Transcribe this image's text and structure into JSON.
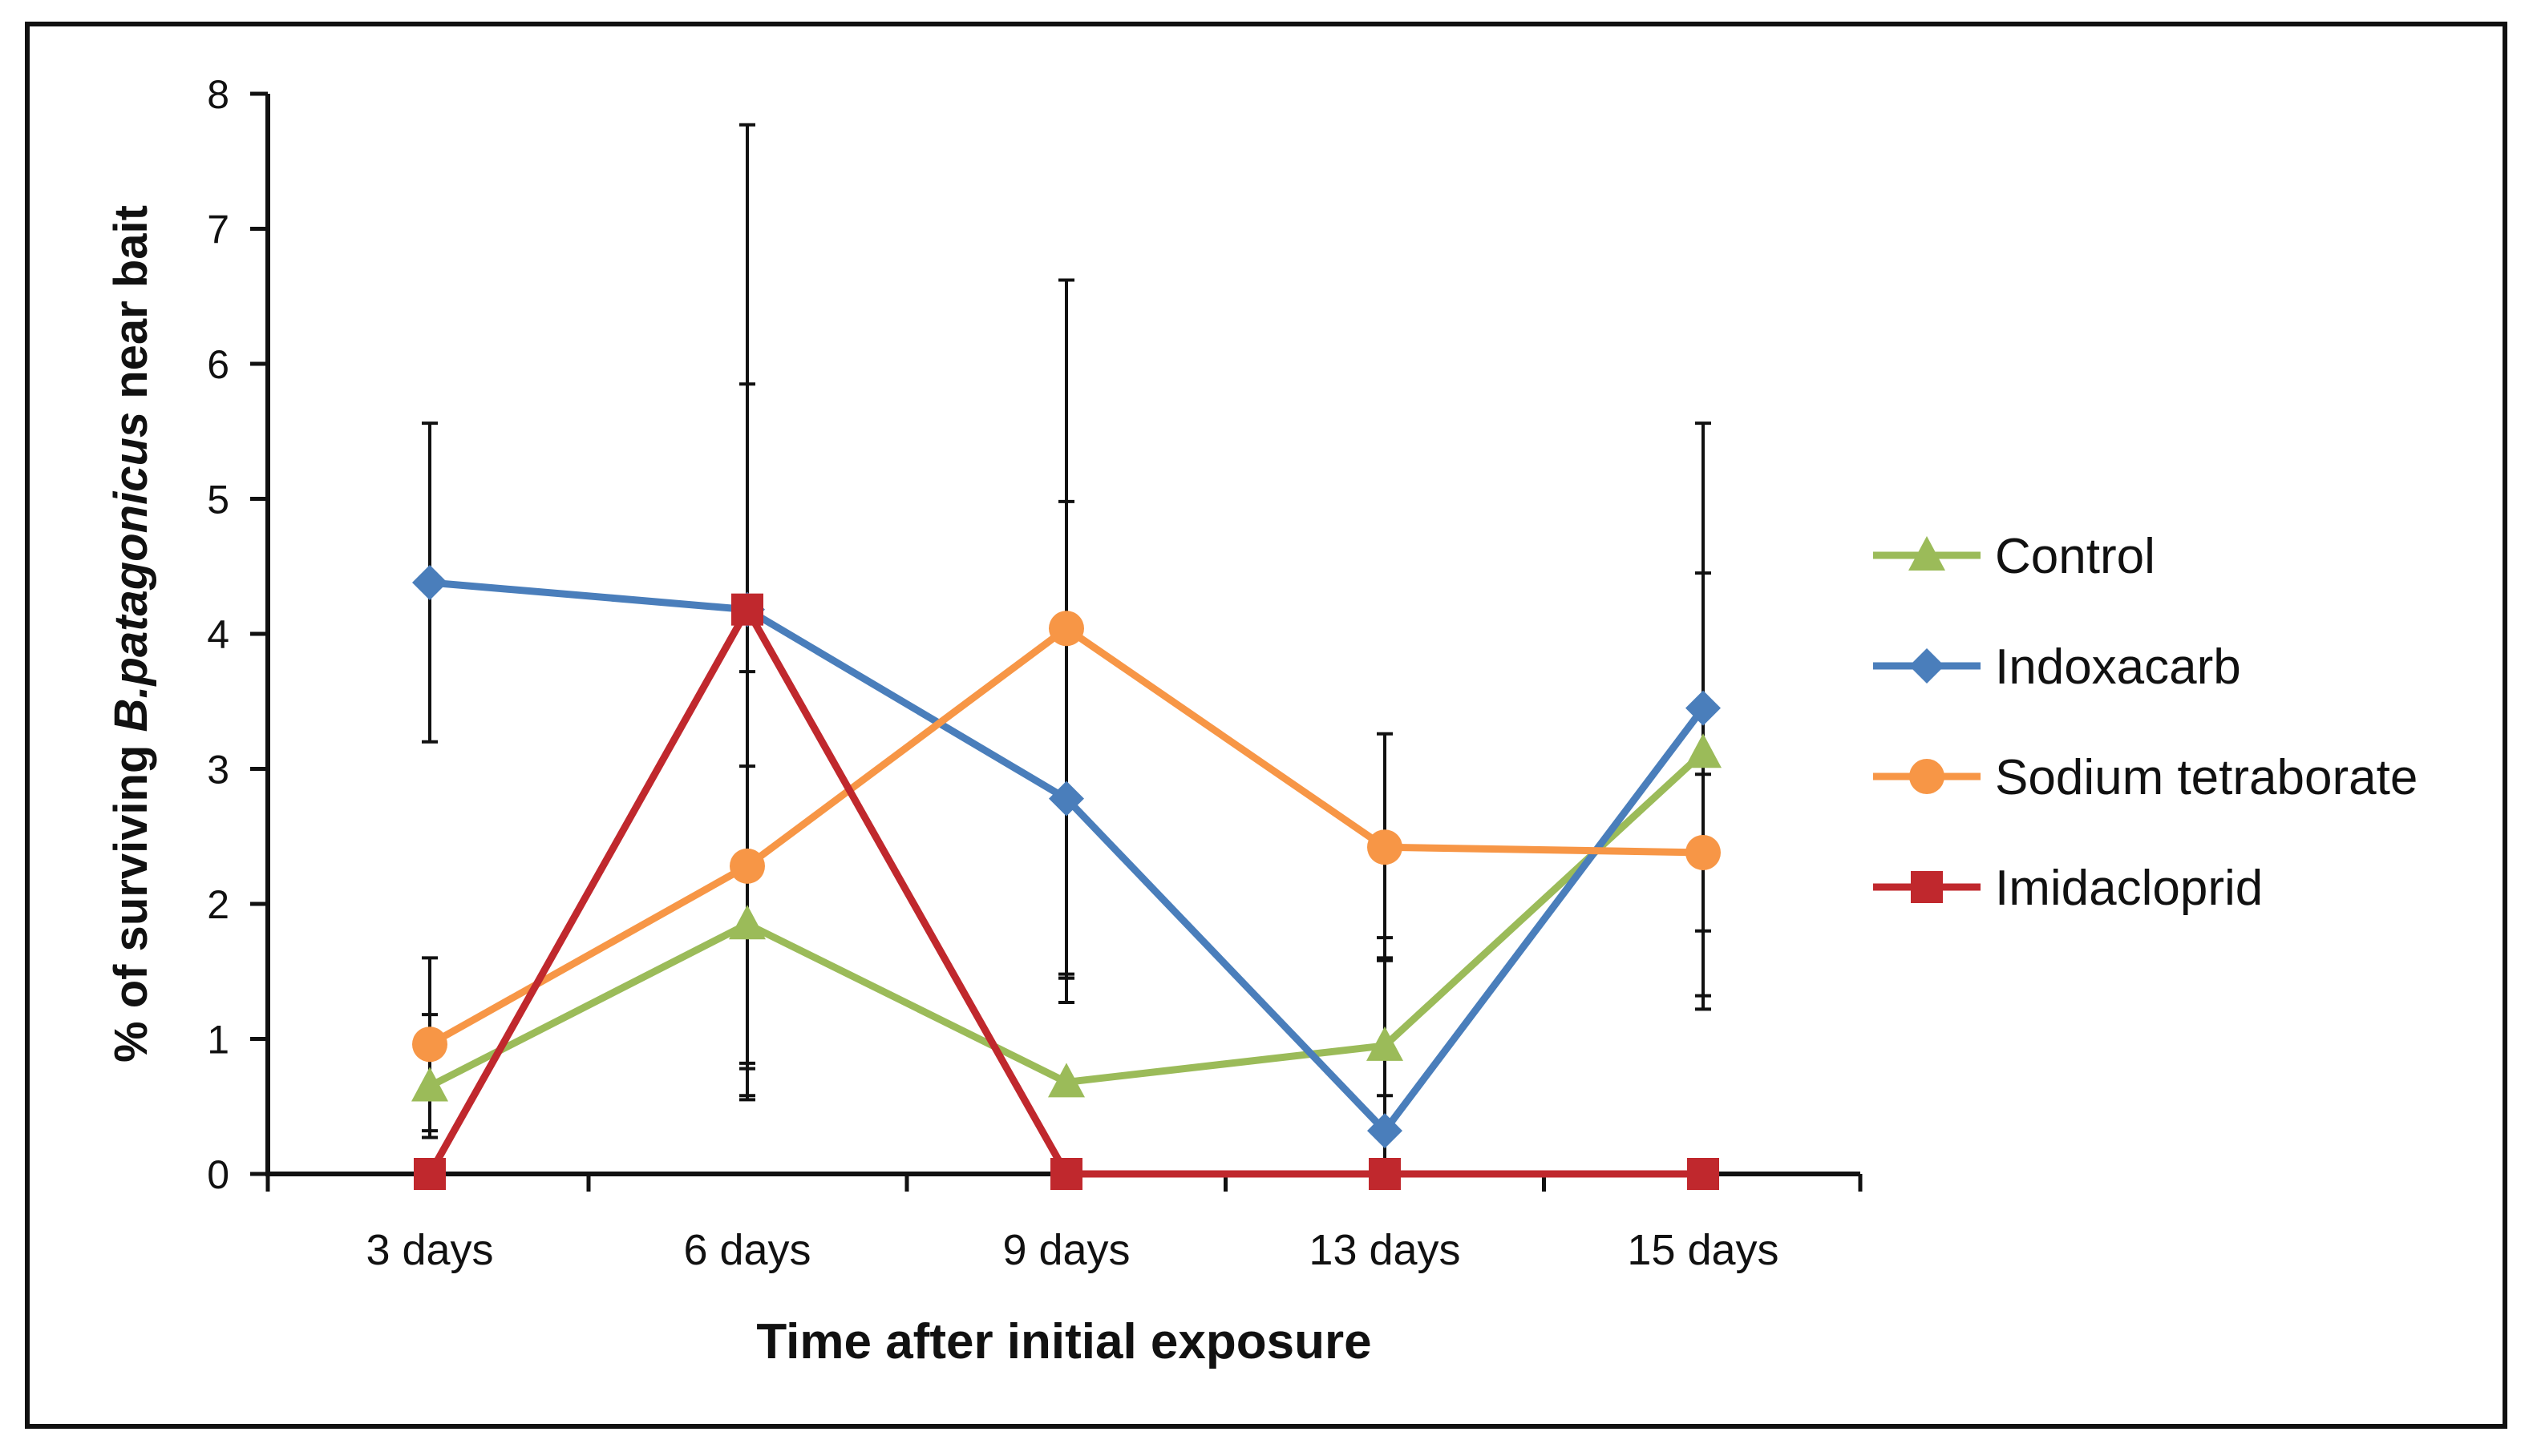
{
  "chart_data": {
    "type": "line",
    "title": "",
    "xlabel": "Time after initial exposure",
    "ylabel": {
      "prefix": "% of surviving ",
      "italic": "B.patagonicus",
      "suffix": " near bait"
    },
    "ylim": [
      0,
      8
    ],
    "yticks": [
      "0",
      "1",
      "2",
      "3",
      "4",
      "5",
      "6",
      "7",
      "8"
    ],
    "categories": [
      "3 days",
      "6 days",
      "9 days",
      "13 days",
      "15 days"
    ],
    "grid": false,
    "legend_position": "right",
    "series": [
      {
        "name": "Control",
        "color": "#9bbb59",
        "marker": "triangle",
        "values": [
          0.65,
          1.85,
          0.68,
          0.95,
          3.12
        ],
        "err_low": [
          0.27,
          0.58,
          1.27,
          0.58,
          1.22
        ],
        "err_high": [
          1.18,
          3.02,
          1.48,
          1.75,
          4.45
        ]
      },
      {
        "name": "Indoxacarb",
        "color": "#4a7ebb",
        "marker": "diamond",
        "values": [
          4.38,
          4.18,
          2.78,
          0.32,
          3.45
        ],
        "err_low": [
          3.2,
          0.55,
          1.45,
          0.0,
          1.32
        ],
        "err_high": [
          5.56,
          7.77,
          4.98,
          1.6,
          5.56
        ]
      },
      {
        "name": "Sodium tetraborate",
        "color": "#f79646",
        "marker": "circle",
        "values": [
          0.96,
          2.28,
          4.04,
          2.42,
          2.38
        ],
        "err_low": [
          0.32,
          0.82,
          1.45,
          1.58,
          1.8
        ],
        "err_high": [
          1.6,
          3.72,
          6.62,
          3.26,
          2.96
        ]
      },
      {
        "name": "Imidacloprid",
        "color": "#c0282d",
        "marker": "square",
        "values": [
          0,
          4.18,
          0,
          0,
          0
        ],
        "err_low": [
          0,
          0.78,
          0,
          0,
          0
        ],
        "err_high": [
          0,
          5.85,
          0,
          0,
          0
        ]
      }
    ]
  }
}
